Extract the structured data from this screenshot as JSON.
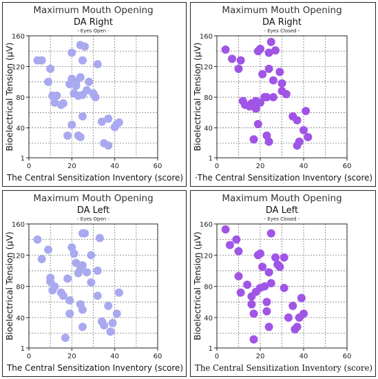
{
  "chart_data": [
    {
      "type": "scatter",
      "title": "Maximum Mouth Opening",
      "subtitle": "DA Right",
      "condition": "- Eyes Open -",
      "xlabel": "The Central Sensitization Inventory (score)",
      "ylabel": "Bioelectrical Tension (µV)",
      "xlim": [
        0,
        60
      ],
      "ylim": [
        1,
        160
      ],
      "xticks": [
        "0",
        "20",
        "40",
        "60"
      ],
      "yticks": [
        "1",
        "40",
        "80",
        "120",
        "160"
      ],
      "grid": true,
      "color": "#a9a9f0",
      "points": [
        [
          4,
          128
        ],
        [
          6,
          128
        ],
        [
          9,
          100
        ],
        [
          10,
          117
        ],
        [
          11,
          82
        ],
        [
          12,
          73
        ],
        [
          13,
          82
        ],
        [
          15,
          70
        ],
        [
          16,
          72
        ],
        [
          18,
          30
        ],
        [
          19,
          97
        ],
        [
          20,
          138
        ],
        [
          20,
          104
        ],
        [
          20,
          44
        ],
        [
          21,
          85
        ],
        [
          22,
          95
        ],
        [
          22,
          100
        ],
        [
          23,
          82
        ],
        [
          23,
          30
        ],
        [
          24,
          148
        ],
        [
          24,
          106
        ],
        [
          24,
          28
        ],
        [
          25,
          55
        ],
        [
          25,
          83
        ],
        [
          25,
          128
        ],
        [
          26,
          146
        ],
        [
          27,
          89
        ],
        [
          28,
          100
        ],
        [
          30,
          85
        ],
        [
          31,
          80
        ],
        [
          32,
          123
        ],
        [
          34,
          48
        ],
        [
          35,
          20
        ],
        [
          37,
          52
        ],
        [
          37,
          17
        ],
        [
          40,
          41
        ],
        [
          41,
          45
        ],
        [
          42,
          47
        ]
      ]
    },
    {
      "type": "scatter",
      "title": "Maximum Mouth Opening",
      "subtitle": "DA Right",
      "condition": "- Eyes Closed -",
      "xlabel": "·The Central Sensitization Inventory (score)",
      "ylabel": "Bioelectrical Tension (µV)",
      "xlim": [
        0,
        60
      ],
      "ylim": [
        1,
        160
      ],
      "xticks": [
        "0",
        "20",
        "40",
        "60"
      ],
      "yticks": [
        "1",
        "40",
        "80",
        "120",
        "160"
      ],
      "grid": true,
      "color": "#a055e6",
      "points": [
        [
          4,
          142
        ],
        [
          7,
          130
        ],
        [
          10,
          117
        ],
        [
          11,
          128
        ],
        [
          12,
          75
        ],
        [
          13,
          70
        ],
        [
          15,
          68
        ],
        [
          16,
          72
        ],
        [
          17,
          25
        ],
        [
          18,
          65
        ],
        [
          18,
          75
        ],
        [
          19,
          45
        ],
        [
          19,
          140
        ],
        [
          20,
          143
        ],
        [
          20,
          73
        ],
        [
          21,
          110
        ],
        [
          22,
          80
        ],
        [
          23,
          80
        ],
        [
          23,
          30
        ],
        [
          24,
          22
        ],
        [
          24,
          117
        ],
        [
          24,
          138
        ],
        [
          25,
          152
        ],
        [
          26,
          80
        ],
        [
          26,
          102
        ],
        [
          27,
          141
        ],
        [
          29,
          113
        ],
        [
          30,
          98
        ],
        [
          30,
          88
        ],
        [
          32,
          84
        ],
        [
          35,
          55
        ],
        [
          37,
          17
        ],
        [
          37,
          50
        ],
        [
          38,
          22
        ],
        [
          40,
          37
        ],
        [
          41,
          62
        ],
        [
          42,
          28
        ]
      ]
    },
    {
      "type": "scatter",
      "title": "Maximum Mouth Opening",
      "subtitle": "DA Left",
      "condition": "- Eyes Open -",
      "xlabel": "The Central Sensitization Inventory (score)",
      "ylabel": "Bioelectrical Tension (µV)",
      "xlim": [
        0,
        60
      ],
      "ylim": [
        1,
        160
      ],
      "xticks": [
        "0",
        "20",
        "40",
        "60"
      ],
      "yticks": [
        "1",
        "40",
        "80",
        "120",
        "160"
      ],
      "grid": true,
      "color": "#a9a9f0",
      "points": [
        [
          4,
          140
        ],
        [
          6,
          115
        ],
        [
          9,
          127
        ],
        [
          10,
          86
        ],
        [
          10,
          91
        ],
        [
          11,
          75
        ],
        [
          12,
          80
        ],
        [
          15,
          72
        ],
        [
          16,
          68
        ],
        [
          17,
          14
        ],
        [
          18,
          90
        ],
        [
          19,
          62
        ],
        [
          19,
          45
        ],
        [
          20,
          130
        ],
        [
          21,
          122
        ],
        [
          22,
          110
        ],
        [
          23,
          97
        ],
        [
          24,
          57
        ],
        [
          24,
          102
        ],
        [
          25,
          148
        ],
        [
          25,
          107
        ],
        [
          25,
          28
        ],
        [
          25,
          50
        ],
        [
          26,
          148
        ],
        [
          27,
          98
        ],
        [
          29,
          120
        ],
        [
          29,
          85
        ],
        [
          32,
          100
        ],
        [
          33,
          142
        ],
        [
          32,
          68
        ],
        [
          34,
          35
        ],
        [
          35,
          30
        ],
        [
          37,
          55
        ],
        [
          38,
          22
        ],
        [
          39,
          33
        ],
        [
          41,
          45
        ],
        [
          42,
          72
        ]
      ]
    },
    {
      "type": "scatter",
      "title": "Maximum Mouth Opening",
      "subtitle": "DA Left",
      "condition": "- Eyes Closed -",
      "xlabel": "The Central Sensitization Inventory (score)",
      "ylabel": "Bioelectrical Tension (µV)",
      "xlim": [
        0,
        60
      ],
      "ylim": [
        1,
        160
      ],
      "xticks": [
        "0",
        "20",
        "40",
        "60"
      ],
      "yticks": [
        "1",
        "40",
        "80",
        "120",
        "160"
      ],
      "grid": true,
      "color": "#a055e6",
      "points": [
        [
          4,
          153
        ],
        [
          6,
          133
        ],
        [
          9,
          140
        ],
        [
          10,
          125
        ],
        [
          10,
          93
        ],
        [
          11,
          72
        ],
        [
          14,
          82
        ],
        [
          16,
          67
        ],
        [
          16,
          57
        ],
        [
          17,
          12
        ],
        [
          17,
          45
        ],
        [
          18,
          73
        ],
        [
          19,
          120
        ],
        [
          20,
          122
        ],
        [
          20,
          78
        ],
        [
          21,
          105
        ],
        [
          22,
          80
        ],
        [
          23,
          60
        ],
        [
          23,
          48
        ],
        [
          24,
          28
        ],
        [
          24,
          98
        ],
        [
          25,
          148
        ],
        [
          25,
          84
        ],
        [
          27,
          117
        ],
        [
          28,
          108
        ],
        [
          29,
          105
        ],
        [
          31,
          117
        ],
        [
          31,
          78
        ],
        [
          33,
          40
        ],
        [
          35,
          55
        ],
        [
          36,
          25
        ],
        [
          37,
          28
        ],
        [
          38,
          40
        ],
        [
          39,
          65
        ],
        [
          40,
          45
        ]
      ]
    }
  ]
}
